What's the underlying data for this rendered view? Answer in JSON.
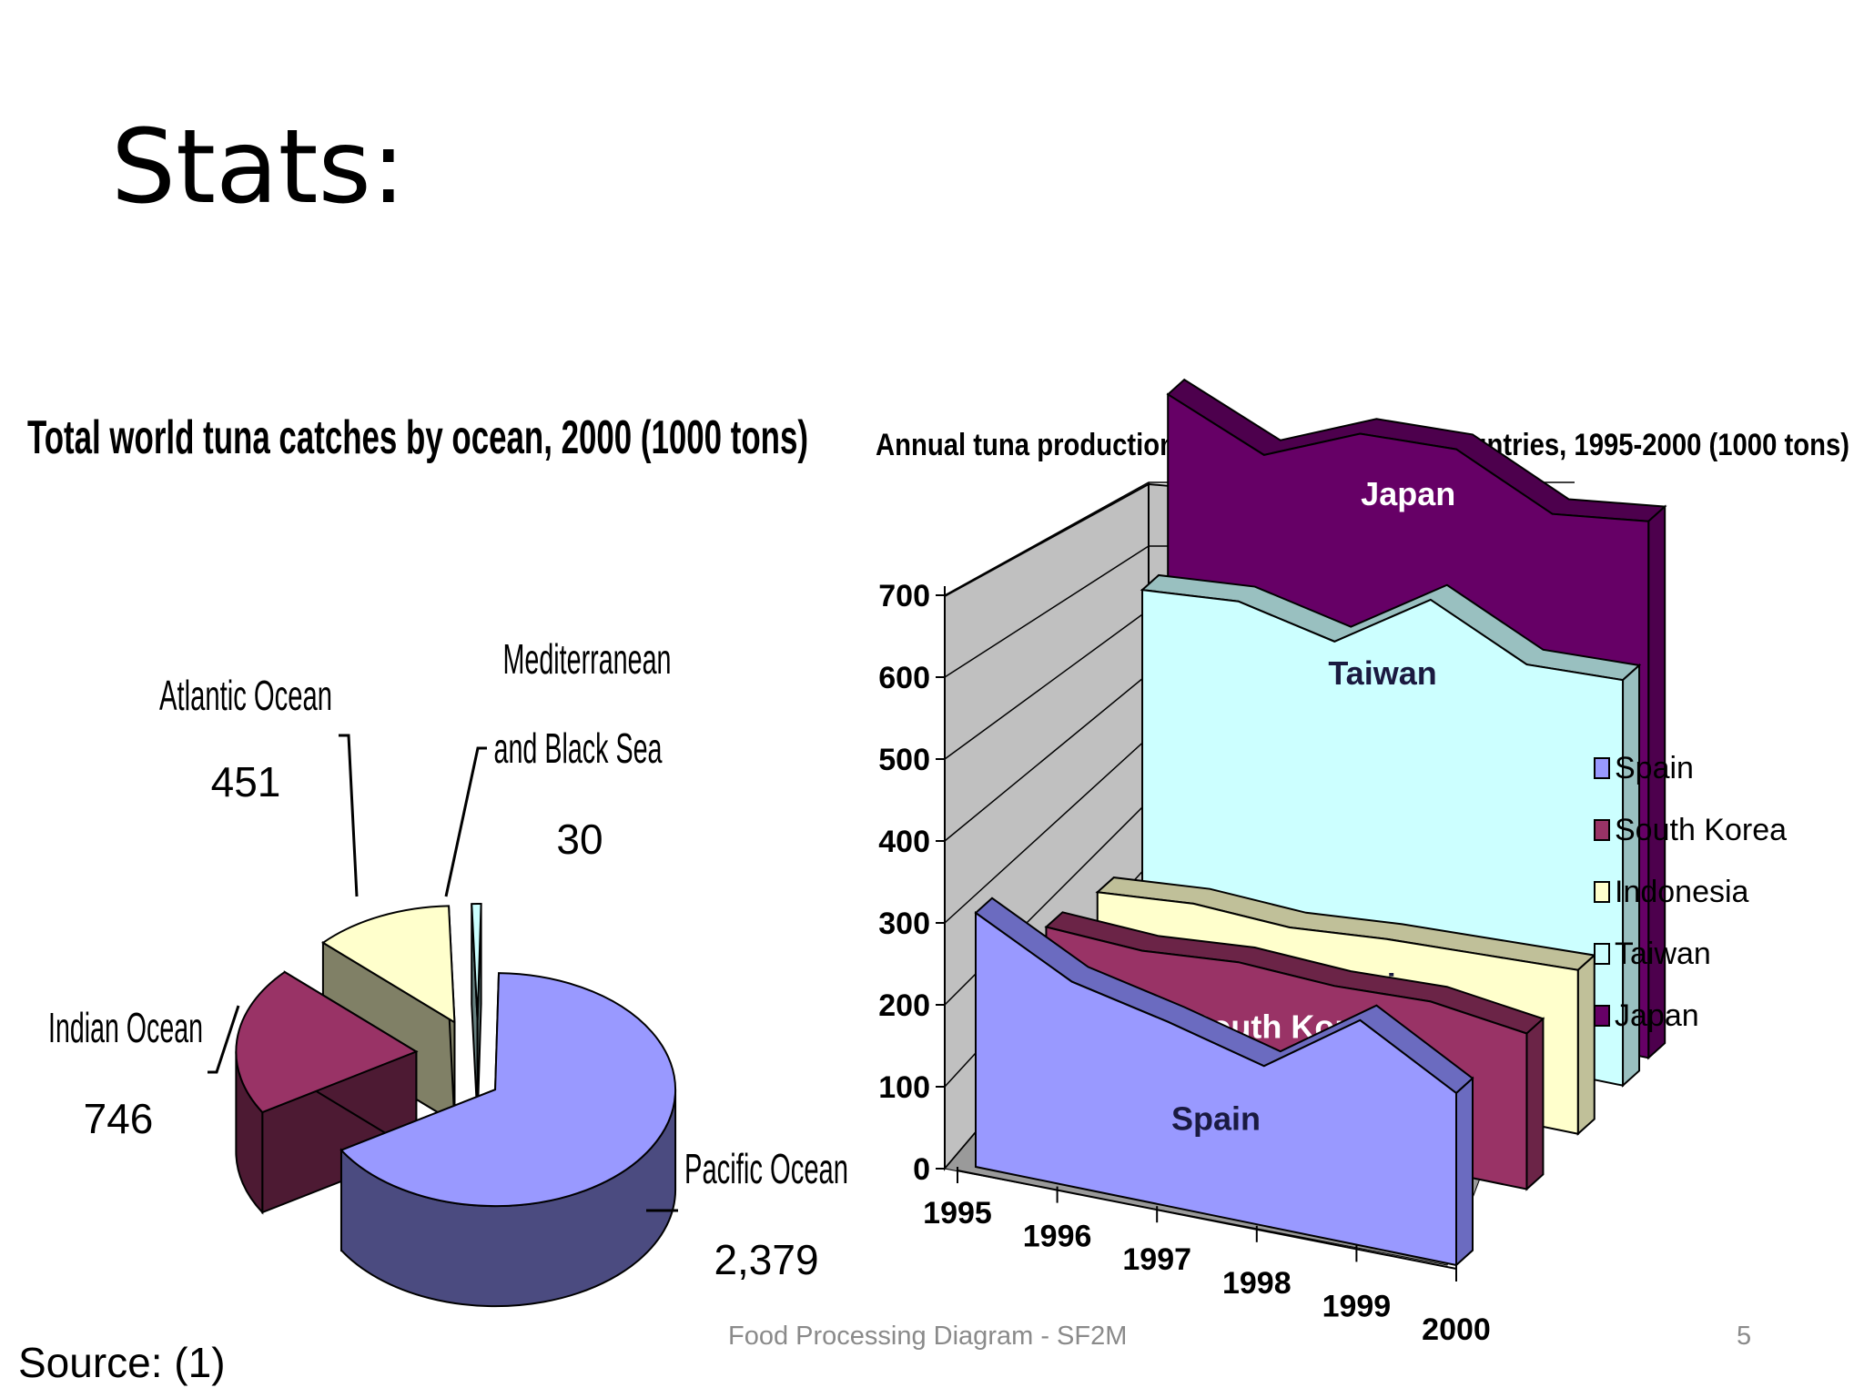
{
  "slide": {
    "title": "Stats:",
    "footer_center": "Food Processing Diagram - SF2M",
    "page_number": "5",
    "source": "Source: (1)"
  },
  "chart_data": [
    {
      "type": "pie",
      "title": "Total world tuna catches by ocean, 2000 (1000 tons)",
      "slices": [
        {
          "name": "Pacific Ocean",
          "value": 2379,
          "value_label": "2,379",
          "color": "#9999ff",
          "side_color": "#4b4b80"
        },
        {
          "name": "Indian Ocean",
          "value": 746,
          "value_label": "746",
          "color": "#993366",
          "side_color": "#4d1a33"
        },
        {
          "name": "Atlantic Ocean",
          "value": 451,
          "value_label": "451",
          "color": "#ffffcc",
          "side_color": "#808066"
        },
        {
          "name_lines": [
            "Mediterranean",
            "and Black Sea"
          ],
          "value": 30,
          "value_label": "30",
          "color": "#ccffff",
          "side_color": "#668080"
        }
      ]
    },
    {
      "type": "area",
      "title": "Annual tuna production by major producing countries, 1995-2000 (1000 tons)",
      "categories": [
        "1995",
        "1996",
        "1997",
        "1998",
        "1999",
        "2000"
      ],
      "y_ticks": [
        "0",
        "100",
        "200",
        "300",
        "400",
        "500",
        "600",
        "700"
      ],
      "ylim": [
        0,
        700
      ],
      "legend_position": "right",
      "series": [
        {
          "name": "Spain",
          "values": [
            310,
            250,
            225,
            195,
            275,
            210
          ],
          "color": "#9999ff",
          "side_color": "#6b6bc0"
        },
        {
          "name": "South Korea",
          "values": [
            200,
            195,
            205,
            200,
            205,
            190
          ],
          "color": "#993366",
          "side_color": "#6b2447"
        },
        {
          "name": "Indonesia",
          "values": [
            175,
            185,
            180,
            190,
            195,
            200
          ],
          "color": "#ffffcc",
          "side_color": "#c0c099"
        },
        {
          "name": "Taiwan",
          "values": [
            485,
            495,
            470,
            545,
            490,
            495
          ],
          "color": "#ccffff",
          "side_color": "#99c0c0"
        },
        {
          "name": "Japan",
          "values": [
            690,
            640,
            690,
            695,
            640,
            655
          ],
          "color": "#660066",
          "side_color": "#4d004d"
        }
      ]
    }
  ]
}
